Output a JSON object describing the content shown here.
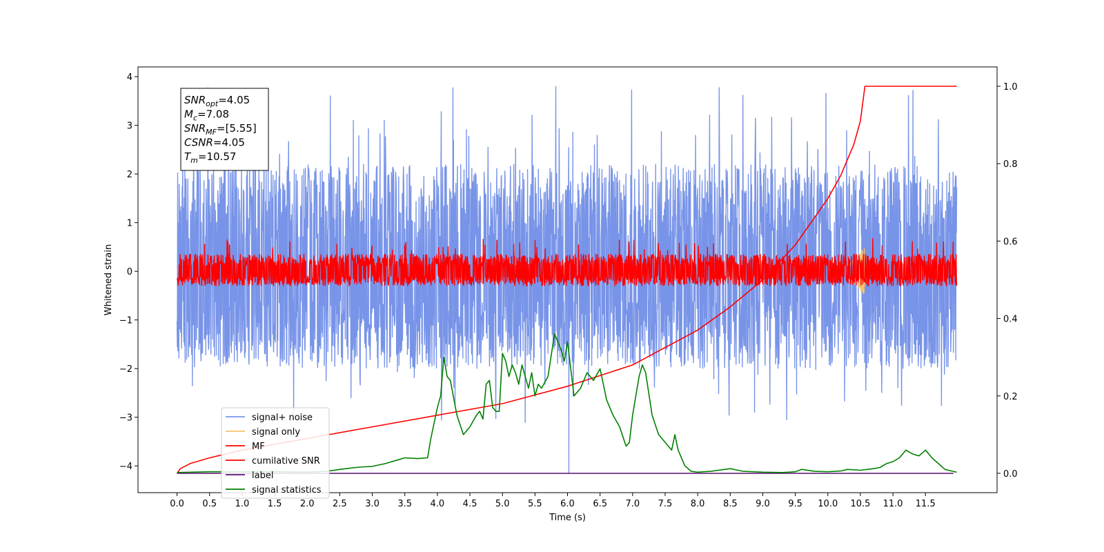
{
  "chart_data": {
    "type": "line",
    "xlabel": "Time (s)",
    "ylabel": "Whitened strain",
    "xlim": [
      -0.6,
      12.6
    ],
    "ylim": [
      -4.55,
      4.2
    ],
    "y2lim": [
      -0.05,
      1.05
    ],
    "x_ticks": [
      0.0,
      0.5,
      1.0,
      1.5,
      2.0,
      2.5,
      3.0,
      3.5,
      4.0,
      4.5,
      5.0,
      5.5,
      6.0,
      6.5,
      7.0,
      7.5,
      8.0,
      8.5,
      9.0,
      9.5,
      10.0,
      10.5,
      11.0,
      11.5
    ],
    "x_tick_labels": [
      "0.0",
      "0.5",
      "1.0",
      "1.5",
      "2.0",
      "2.5",
      "3.0",
      "3.5",
      "4.0",
      "4.5",
      "5.0",
      "5.5",
      "6.0",
      "6.5",
      "7.0",
      "7.5",
      "8.0",
      "8.5",
      "9.0",
      "9.5",
      "10.0",
      "10.5",
      "11.0",
      "11.5"
    ],
    "y_ticks": [
      -4,
      -3,
      -2,
      -1,
      0,
      1,
      2,
      3,
      4
    ],
    "y_tick_labels": [
      "−4",
      "−3",
      "−2",
      "−1",
      "0",
      "1",
      "2",
      "3",
      "4"
    ],
    "y2_ticks": [
      0.0,
      0.2,
      0.4,
      0.6,
      0.8,
      1.0
    ],
    "y2_tick_labels": [
      "0.0",
      "0.2",
      "0.4",
      "0.6",
      "0.8",
      "1.0"
    ],
    "grid": false,
    "legend_position": "lower-left",
    "stats_box": [
      {
        "sym": "SNR",
        "sub": "opt",
        "val": "=4.05"
      },
      {
        "sym": "M",
        "sub": "c",
        "val": "=7.08"
      },
      {
        "sym": "SNR",
        "sub": "MF",
        "val": "=[5.55]"
      },
      {
        "sym": "CSNR",
        "sub": "",
        "val": "=4.05"
      },
      {
        "sym": "T",
        "sub": "m",
        "val": "=10.57"
      }
    ],
    "series": [
      {
        "name": "signal+ noise",
        "color": "#7894e8",
        "axis": "left",
        "kind": "noise",
        "x_range": [
          0.0,
          11.98
        ],
        "band_lower": -2.0,
        "band_upper": 2.2,
        "spike_max": 3.8,
        "spike_min": -4.15
      },
      {
        "name": "signal only",
        "color": "#f5c26b",
        "axis": "left",
        "kind": "chirp",
        "x_range": [
          10.3,
          10.57
        ],
        "amplitude": 0.5
      },
      {
        "name": "MF",
        "color": "#ff0000",
        "axis": "left",
        "kind": "noise",
        "x_range": [
          0.0,
          11.98
        ],
        "band_lower": -0.3,
        "band_upper": 0.35,
        "spike_max": 0.7,
        "spike_min": -0.35
      },
      {
        "name": "cumilative SNR",
        "color": "#ff0000",
        "axis": "right",
        "x": [
          0.0,
          0.05,
          0.2,
          0.5,
          1.0,
          2.0,
          3.0,
          4.0,
          5.0,
          6.0,
          7.0,
          8.0,
          8.5,
          9.0,
          9.5,
          10.0,
          10.2,
          10.4,
          10.5,
          10.57,
          10.6,
          11.0,
          11.5,
          11.98
        ],
        "y": [
          0.0,
          0.012,
          0.025,
          0.04,
          0.06,
          0.09,
          0.12,
          0.15,
          0.18,
          0.225,
          0.28,
          0.37,
          0.43,
          0.5,
          0.59,
          0.71,
          0.77,
          0.85,
          0.91,
          1.0,
          1.0,
          1.0,
          1.0,
          1.0
        ]
      },
      {
        "name": "label",
        "color": "#5b0f6f",
        "axis": "right",
        "x": [
          0.0,
          11.93
        ],
        "y": [
          0.0,
          0.0
        ]
      },
      {
        "name": "signal statistics",
        "color": "#008000",
        "axis": "right",
        "x": [
          0.0,
          0.5,
          1.0,
          1.5,
          2.0,
          2.3,
          2.5,
          2.8,
          3.0,
          3.2,
          3.4,
          3.5,
          3.7,
          3.85,
          3.9,
          4.0,
          4.05,
          4.1,
          4.15,
          4.2,
          4.3,
          4.4,
          4.5,
          4.6,
          4.65,
          4.7,
          4.75,
          4.8,
          4.85,
          4.9,
          4.95,
          5.0,
          5.05,
          5.1,
          5.15,
          5.2,
          5.25,
          5.3,
          5.35,
          5.4,
          5.45,
          5.5,
          5.55,
          5.6,
          5.7,
          5.8,
          5.85,
          5.9,
          5.95,
          6.0,
          6.05,
          6.1,
          6.2,
          6.3,
          6.4,
          6.5,
          6.6,
          6.7,
          6.8,
          6.9,
          6.95,
          7.0,
          7.05,
          7.1,
          7.15,
          7.2,
          7.3,
          7.4,
          7.5,
          7.6,
          7.65,
          7.7,
          7.8,
          7.9,
          8.0,
          8.2,
          8.5,
          8.7,
          9.0,
          9.3,
          9.5,
          9.6,
          9.8,
          10.0,
          10.2,
          10.3,
          10.5,
          10.7,
          10.8,
          10.9,
          11.0,
          11.1,
          11.2,
          11.3,
          11.4,
          11.5,
          11.6,
          11.7,
          11.8,
          11.9,
          11.98
        ],
        "y": [
          0.002,
          0.004,
          0.004,
          0.004,
          0.003,
          0.005,
          0.01,
          0.016,
          0.018,
          0.025,
          0.035,
          0.04,
          0.038,
          0.04,
          0.09,
          0.17,
          0.2,
          0.3,
          0.25,
          0.24,
          0.15,
          0.1,
          0.12,
          0.15,
          0.16,
          0.14,
          0.23,
          0.24,
          0.17,
          0.16,
          0.16,
          0.31,
          0.29,
          0.25,
          0.28,
          0.26,
          0.23,
          0.28,
          0.25,
          0.22,
          0.26,
          0.2,
          0.23,
          0.22,
          0.25,
          0.36,
          0.34,
          0.32,
          0.29,
          0.34,
          0.27,
          0.2,
          0.22,
          0.26,
          0.24,
          0.27,
          0.19,
          0.15,
          0.12,
          0.07,
          0.08,
          0.15,
          0.2,
          0.25,
          0.28,
          0.26,
          0.15,
          0.1,
          0.08,
          0.06,
          0.1,
          0.06,
          0.02,
          0.005,
          0.003,
          0.005,
          0.012,
          0.005,
          0.003,
          0.002,
          0.004,
          0.01,
          0.005,
          0.004,
          0.006,
          0.01,
          0.008,
          0.012,
          0.015,
          0.025,
          0.03,
          0.04,
          0.06,
          0.05,
          0.045,
          0.06,
          0.04,
          0.025,
          0.01,
          0.006,
          0.003
        ]
      }
    ]
  }
}
